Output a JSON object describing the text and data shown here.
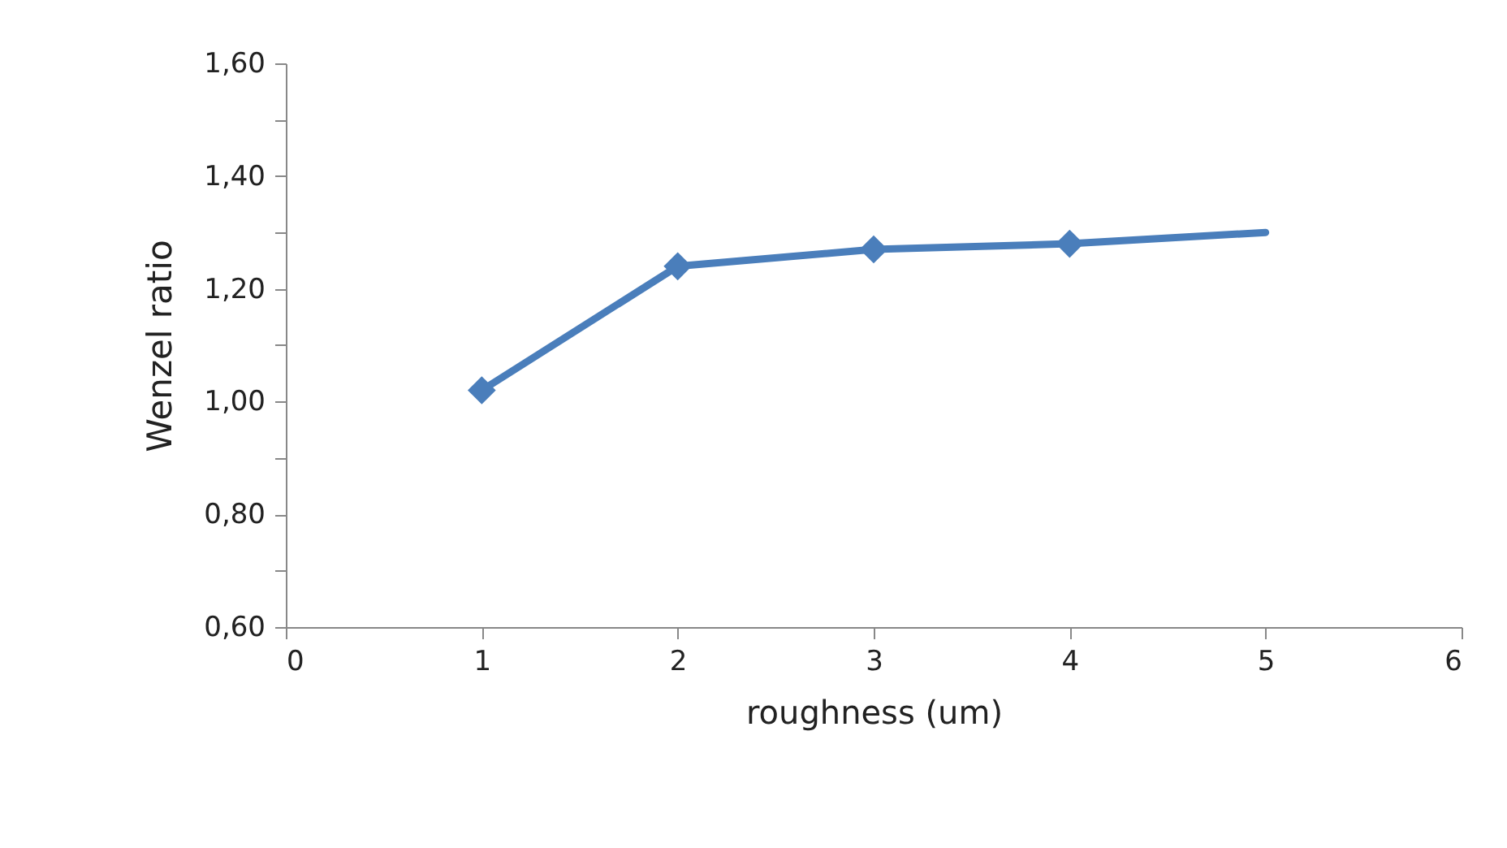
{
  "chart_data": {
    "type": "line",
    "xlabel": "roughness (um)",
    "ylabel": "Wenzel ratio",
    "series": [
      {
        "type": "line",
        "color": "#4a7ebb",
        "marker": "none",
        "x": [
          1,
          2,
          3,
          4,
          5
        ],
        "values": [
          1.02,
          1.24,
          1.27,
          1.28,
          1.3
        ]
      },
      {
        "type": "scatter",
        "color": "#4a7ebb",
        "marker": "diamond",
        "x": [
          1,
          2,
          3,
          4
        ],
        "values": [
          1.02,
          1.24,
          1.27,
          1.28
        ]
      }
    ],
    "xlim": [
      0,
      6
    ],
    "xticks": [
      0,
      1,
      2,
      3,
      4,
      5,
      6
    ],
    "ylim": [
      0.6,
      1.6
    ],
    "yticks": [
      {
        "value": 0.6,
        "label": "0,60"
      },
      {
        "value": 0.7,
        "label": null
      },
      {
        "value": 0.8,
        "label": "0,80"
      },
      {
        "value": 0.9,
        "label": null
      },
      {
        "value": 1.0,
        "label": "1,00"
      },
      {
        "value": 1.1,
        "label": null
      },
      {
        "value": 1.2,
        "label": "1,20"
      },
      {
        "value": 1.3,
        "label": null
      },
      {
        "value": 1.4,
        "label": "1,40"
      },
      {
        "value": 1.5,
        "label": null
      },
      {
        "value": 1.6,
        "label": "1,60"
      }
    ],
    "grid": false
  }
}
